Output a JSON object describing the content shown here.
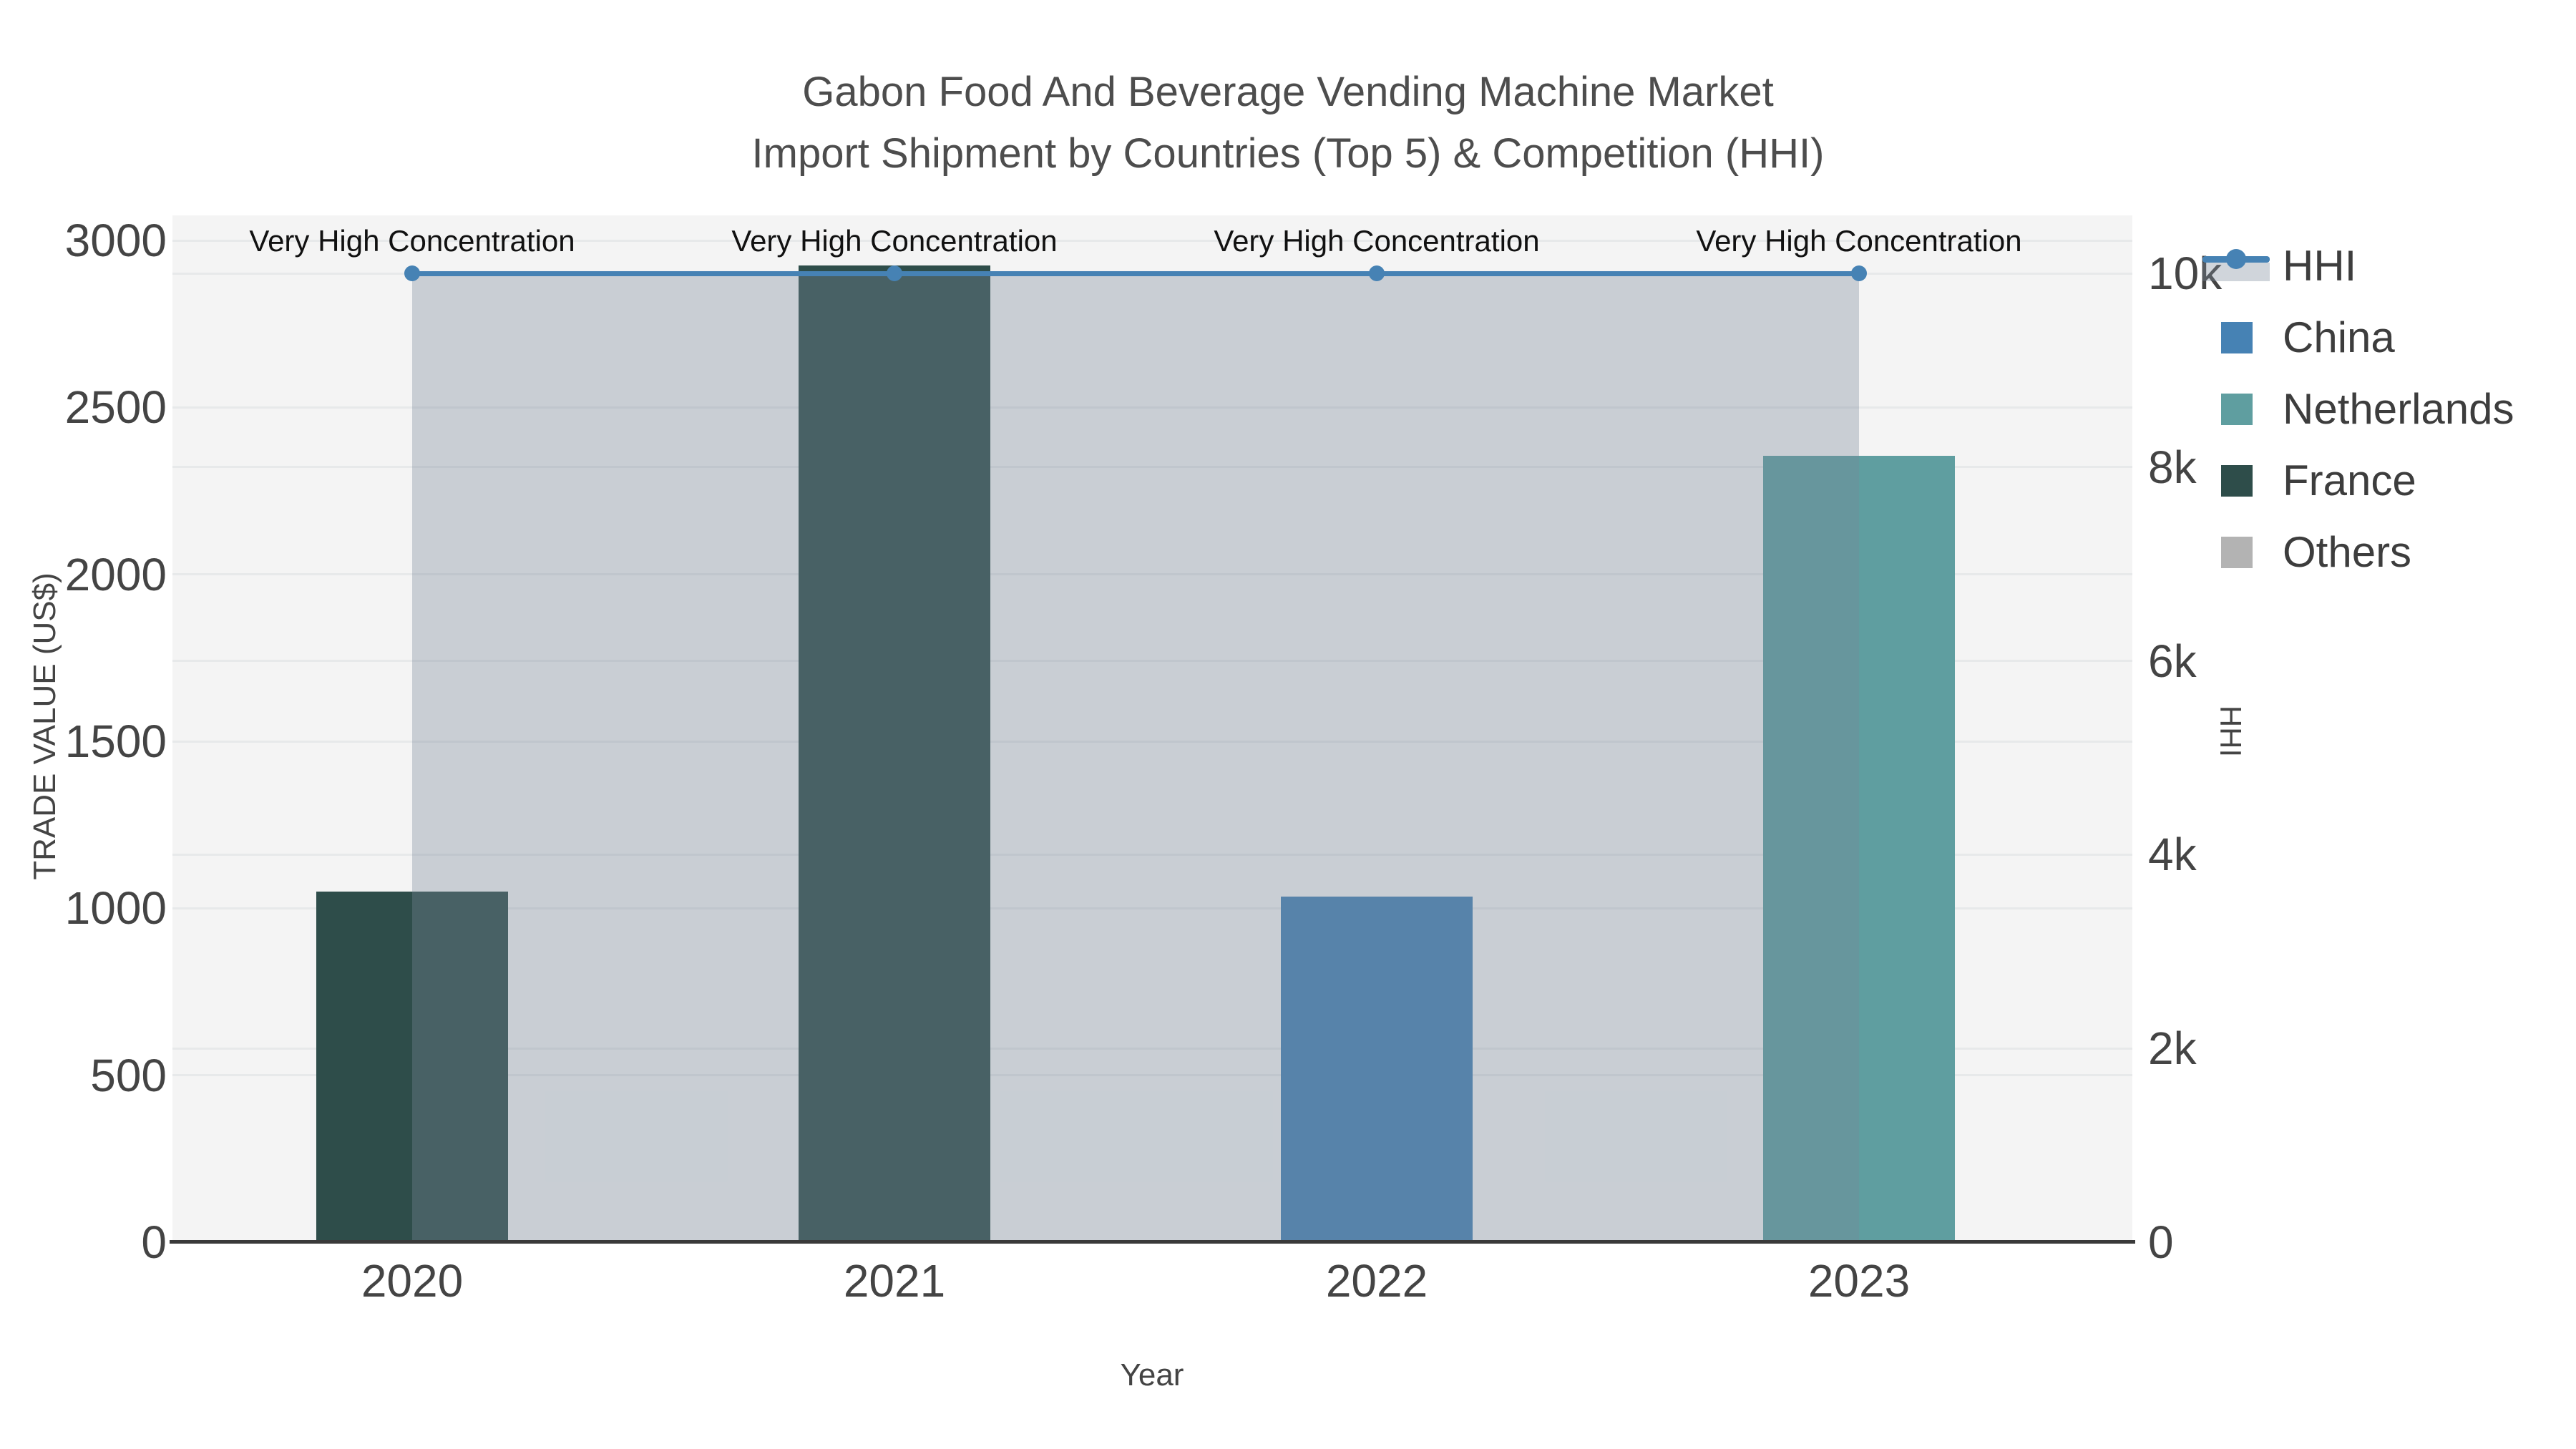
{
  "title": {
    "line1": "Gabon Food And Beverage Vending Machine Market",
    "line2": "Import Shipment by Countries (Top 5) & Competition (HHI)"
  },
  "colors": {
    "plot_background": "#f4f4f4",
    "gridline": "#e7e9ea",
    "axis_line": "#3a3a3a",
    "hhi_line": "#4682b4",
    "hhi_area_fill": "rgba(119,136,153,0.35)",
    "china": "#4682b4",
    "netherlands": "#5f9ea0",
    "france": "#2e4d4a",
    "others": "#b3b3b3"
  },
  "chart_data": {
    "type": "bar",
    "title": "Gabon Food And Beverage Vending Machine Market",
    "subtitle": "Import Shipment by Countries (Top 5) & Competition (HHI)",
    "categories": [
      "2020",
      "2021",
      "2022",
      "2023"
    ],
    "series": [
      {
        "name": "China",
        "color_key": "china",
        "values": [
          0,
          0,
          1035,
          0
        ]
      },
      {
        "name": "Netherlands",
        "color_key": "netherlands",
        "values": [
          0,
          0,
          0,
          2355
        ]
      },
      {
        "name": "France",
        "color_key": "france",
        "values": [
          1050,
          2925,
          0,
          0
        ]
      },
      {
        "name": "Others",
        "color_key": "others",
        "values": [
          0,
          0,
          0,
          0
        ]
      }
    ],
    "line_series": {
      "name": "HHI",
      "axis": "right",
      "values": [
        10000,
        10000,
        10000,
        10000
      ],
      "area_fill": true
    },
    "annotations": [
      {
        "category": "2020",
        "text": "Very High Concentration"
      },
      {
        "category": "2021",
        "text": "Very High Concentration"
      },
      {
        "category": "2022",
        "text": "Very High Concentration"
      },
      {
        "category": "2023",
        "text": "Very High Concentration"
      }
    ],
    "xlabel": "Year",
    "y_left": {
      "title": "TRADE VALUE (US$)",
      "range": [
        0,
        3000
      ],
      "ticks": [
        0,
        500,
        1000,
        1500,
        2000,
        2500,
        3000
      ],
      "tick_labels": [
        "0",
        "500",
        "1000",
        "1500",
        "2000",
        "2500",
        "3000"
      ]
    },
    "y_right": {
      "title": "HHI",
      "range": [
        0,
        10000
      ],
      "ticks": [
        0,
        2000,
        4000,
        6000,
        8000,
        10000
      ],
      "tick_labels": [
        "0",
        "2k",
        "4k",
        "6k",
        "8k",
        "10k"
      ]
    },
    "grid": true,
    "legend_position": "right"
  },
  "legend": {
    "items": [
      {
        "label": "HHI",
        "icon": "line-marker",
        "color_key": "hhi_line"
      },
      {
        "label": "China",
        "icon": "square",
        "color_key": "china"
      },
      {
        "label": "Netherlands",
        "icon": "square",
        "color_key": "netherlands"
      },
      {
        "label": "France",
        "icon": "square",
        "color_key": "france"
      },
      {
        "label": "Others",
        "icon": "square",
        "color_key": "others"
      }
    ]
  }
}
